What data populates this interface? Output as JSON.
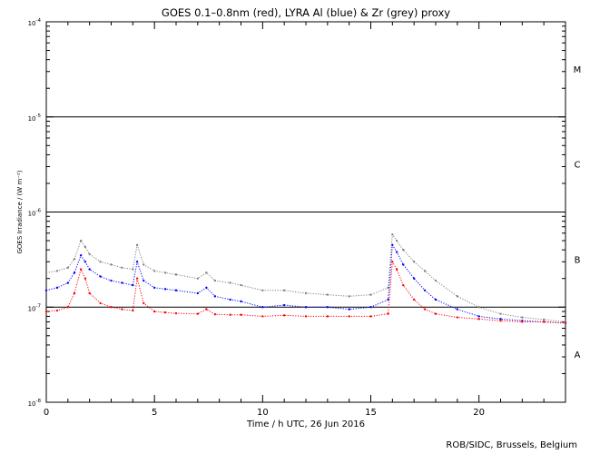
{
  "chart_data": {
    "type": "scatter",
    "title": "GOES 0.1–0.8nm (red), LYRA Al (blue) & Zr (grey) proxy",
    "xlabel": "Time / h UTC, 26 Jun 2016",
    "ylabel": "GOES Irradiance / (W m⁻²)",
    "xlim": [
      0,
      24
    ],
    "ylim": [
      1e-08,
      0.0001
    ],
    "yscale": "log",
    "x_ticks": [
      0,
      5,
      10,
      15,
      20
    ],
    "y_ticks": [
      {
        "value": 1e-08,
        "base": "10",
        "exp": "-8"
      },
      {
        "value": 1e-07,
        "base": "10",
        "exp": "-7"
      },
      {
        "value": 1e-06,
        "base": "10",
        "exp": "-6"
      },
      {
        "value": 1e-05,
        "base": "10",
        "exp": "-5"
      },
      {
        "value": 0.0001,
        "base": "10",
        "exp": "-4"
      }
    ],
    "class_lines": [
      1e-07,
      1e-06,
      1e-05
    ],
    "class_labels": [
      {
        "label": "A",
        "value": 3.2e-08
      },
      {
        "label": "B",
        "value": 3.2e-07
      },
      {
        "label": "C",
        "value": 3.2e-06
      },
      {
        "label": "M",
        "value": 3.2e-05
      }
    ],
    "series": [
      {
        "color": "#808080",
        "x": [
          0,
          0.5,
          1.0,
          1.3,
          1.6,
          1.8,
          2.0,
          2.5,
          3.0,
          3.5,
          4.0,
          4.2,
          4.5,
          5.0,
          5.5,
          6.0,
          7.0,
          7.4,
          7.8,
          8.5,
          9.0,
          10.0,
          11.0,
          12.0,
          13.0,
          14.0,
          15.0,
          15.8,
          16.0,
          16.2,
          16.5,
          17.0,
          17.5,
          18.0,
          19.0,
          20.0,
          21.0,
          22.0,
          23.0,
          24.0
        ],
        "y": [
          2.3e-07,
          2.4e-07,
          2.6e-07,
          3.2e-07,
          5e-07,
          4.3e-07,
          3.6e-07,
          3e-07,
          2.8e-07,
          2.6e-07,
          2.5e-07,
          4.5e-07,
          2.8e-07,
          2.4e-07,
          2.3e-07,
          2.2e-07,
          2e-07,
          2.3e-07,
          1.9e-07,
          1.8e-07,
          1.7e-07,
          1.5e-07,
          1.5e-07,
          1.4e-07,
          1.35e-07,
          1.3e-07,
          1.35e-07,
          1.6e-07,
          5.8e-07,
          5e-07,
          4e-07,
          3e-07,
          2.4e-07,
          1.9e-07,
          1.3e-07,
          1e-07,
          8.5e-08,
          7.8e-08,
          7.4e-08,
          7e-08
        ]
      },
      {
        "color": "#0000ff",
        "x": [
          0,
          0.5,
          1.0,
          1.3,
          1.6,
          1.8,
          2.0,
          2.5,
          3.0,
          3.5,
          4.0,
          4.2,
          4.5,
          5.0,
          5.5,
          6.0,
          7.0,
          7.4,
          7.8,
          8.5,
          9.0,
          10.0,
          11.0,
          12.0,
          13.0,
          14.0,
          15.0,
          15.8,
          16.0,
          16.2,
          16.5,
          17.0,
          17.5,
          18.0,
          19.0,
          20.0,
          21.0,
          22.0,
          23.0,
          24.0
        ],
        "y": [
          1.5e-07,
          1.6e-07,
          1.8e-07,
          2.3e-07,
          3.5e-07,
          3e-07,
          2.5e-07,
          2.1e-07,
          1.9e-07,
          1.8e-07,
          1.7e-07,
          3e-07,
          1.9e-07,
          1.6e-07,
          1.55e-07,
          1.5e-07,
          1.4e-07,
          1.6e-07,
          1.3e-07,
          1.2e-07,
          1.15e-07,
          1e-07,
          1.05e-07,
          1e-07,
          1e-07,
          9.5e-08,
          1e-07,
          1.2e-07,
          4.5e-07,
          3.8e-07,
          2.8e-07,
          2e-07,
          1.5e-07,
          1.2e-07,
          9.5e-08,
          8e-08,
          7.5e-08,
          7.2e-08,
          7e-08,
          6.8e-08
        ]
      },
      {
        "color": "#ff0000",
        "x": [
          0,
          0.5,
          1.0,
          1.3,
          1.6,
          1.8,
          2.0,
          2.5,
          3.0,
          3.5,
          4.0,
          4.2,
          4.5,
          5.0,
          5.5,
          6.0,
          7.0,
          7.4,
          7.8,
          8.5,
          9.0,
          10.0,
          11.0,
          12.0,
          13.0,
          14.0,
          15.0,
          15.8,
          16.0,
          16.2,
          16.5,
          17.0,
          17.5,
          18.0,
          19.0,
          20.0,
          21.0,
          22.0,
          23.0,
          24.0
        ],
        "y": [
          9e-08,
          9.2e-08,
          1e-07,
          1.4e-07,
          2.5e-07,
          2e-07,
          1.4e-07,
          1.1e-07,
          1e-07,
          9.5e-08,
          9.2e-08,
          2e-07,
          1.1e-07,
          9e-08,
          8.8e-08,
          8.6e-08,
          8.5e-08,
          9.5e-08,
          8.4e-08,
          8.3e-08,
          8.3e-08,
          8e-08,
          8.2e-08,
          8e-08,
          8e-08,
          8e-08,
          8e-08,
          8.5e-08,
          3e-07,
          2.5e-07,
          1.7e-07,
          1.2e-07,
          9.5e-08,
          8.5e-08,
          7.8e-08,
          7.5e-08,
          7.2e-08,
          7e-08,
          7e-08,
          6.8e-08
        ]
      }
    ]
  },
  "footer": {
    "credit": "ROB/SIDC, Brussels, Belgium"
  }
}
